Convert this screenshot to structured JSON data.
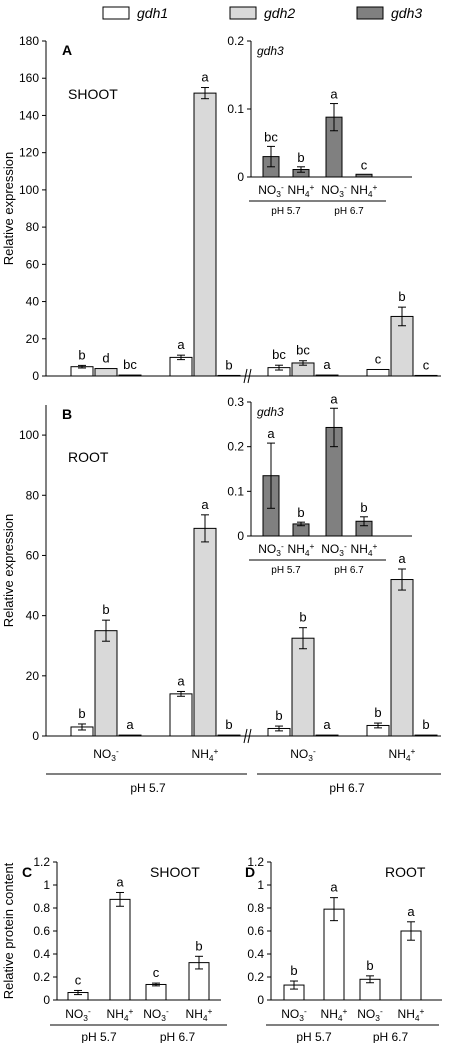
{
  "legend": [
    {
      "label": "gdh1",
      "color": "#ffffff"
    },
    {
      "label": "gdh2",
      "color": "#d9d9d9"
    },
    {
      "label": "gdh3",
      "color": "#808080"
    }
  ],
  "chart_data": [
    {
      "id": "A",
      "type": "bar",
      "panel_letter": "A",
      "title": "SHOOT",
      "xlabel": "",
      "ylabel": "Relative expression",
      "ylim": [
        0,
        180
      ],
      "yticks": [
        "0",
        "20",
        "40",
        "60",
        "80",
        "100",
        "120",
        "140",
        "160",
        "180"
      ],
      "groups": [
        {
          "treatment": "NO3-",
          "ph": "pH 5.7",
          "values": [
            5,
            4,
            0.5
          ],
          "errors": [
            0.7,
            0,
            0
          ],
          "letters": [
            "b",
            "d",
            "bc"
          ]
        },
        {
          "treatment": "NH4+",
          "ph": "pH 5.7",
          "values": [
            10,
            152,
            0.3
          ],
          "errors": [
            1.2,
            3,
            0
          ],
          "letters": [
            "a",
            "a",
            "b"
          ]
        },
        {
          "treatment": "NO3-",
          "ph": "pH 6.7",
          "values": [
            4.5,
            7,
            0.5
          ],
          "errors": [
            1.3,
            1.2,
            0
          ],
          "letters": [
            "bc",
            "bc",
            "a"
          ]
        },
        {
          "treatment": "NH4+",
          "ph": "pH 6.7",
          "values": [
            3.5,
            32,
            0.3
          ],
          "errors": [
            0,
            5,
            0
          ],
          "letters": [
            "c",
            "b",
            "c"
          ]
        }
      ],
      "inset": {
        "title": "gdh3",
        "ylim": [
          0,
          0.2
        ],
        "yticks": [
          "0",
          "0.1",
          "0.2"
        ],
        "bars": [
          {
            "treatment": "NO3-",
            "ph": "pH 5.7",
            "value": 0.03,
            "error": 0.015,
            "letter": "bc"
          },
          {
            "treatment": "NH4+",
            "ph": "pH 5.7",
            "value": 0.011,
            "error": 0.004,
            "letter": "b"
          },
          {
            "treatment": "NO3-",
            "ph": "pH 6.7",
            "value": 0.088,
            "error": 0.02,
            "letter": "a"
          },
          {
            "treatment": "NH4+",
            "ph": "pH 6.7",
            "value": 0.004,
            "error": 0,
            "letter": "c"
          }
        ]
      }
    },
    {
      "id": "B",
      "type": "bar",
      "panel_letter": "B",
      "title": "ROOT",
      "xlabel": "",
      "ylabel": "Relative expression",
      "ylim": [
        0,
        110
      ],
      "yticks": [
        "0",
        "20",
        "40",
        "60",
        "80",
        "100"
      ],
      "groups": [
        {
          "treatment": "NO3-",
          "ph": "pH 5.7",
          "values": [
            3,
            35,
            0.3
          ],
          "errors": [
            1,
            3.5,
            0
          ],
          "letters": [
            "b",
            "b",
            "a"
          ]
        },
        {
          "treatment": "NH4+",
          "ph": "pH 5.7",
          "values": [
            14,
            69,
            0.3
          ],
          "errors": [
            0.8,
            4.5,
            0
          ],
          "letters": [
            "a",
            "a",
            "b"
          ]
        },
        {
          "treatment": "NO3-",
          "ph": "pH 6.7",
          "values": [
            2.5,
            32.5,
            0.3
          ],
          "errors": [
            0.8,
            3.5,
            0
          ],
          "letters": [
            "b",
            "b",
            "a"
          ]
        },
        {
          "treatment": "NH4+",
          "ph": "pH 6.7",
          "values": [
            3.5,
            52,
            0.3
          ],
          "errors": [
            0.8,
            3.5,
            0
          ],
          "letters": [
            "b",
            "a",
            "b"
          ]
        }
      ],
      "inset": {
        "title": "gdh3",
        "ylim": [
          0,
          0.3
        ],
        "yticks": [
          "0",
          "0.1",
          "0.2",
          "0.3"
        ],
        "bars": [
          {
            "treatment": "NO3-",
            "ph": "pH 5.7",
            "value": 0.135,
            "error": 0.073,
            "letter": "a"
          },
          {
            "treatment": "NH4+",
            "ph": "pH 5.7",
            "value": 0.027,
            "error": 0.004,
            "letter": "b"
          },
          {
            "treatment": "NO3-",
            "ph": "pH 6.7",
            "value": 0.243,
            "error": 0.043,
            "letter": "a"
          },
          {
            "treatment": "NH4+",
            "ph": "pH 6.7",
            "value": 0.033,
            "error": 0.01,
            "letter": "b"
          }
        ]
      }
    },
    {
      "id": "C",
      "type": "bar",
      "panel_letter": "C",
      "title": "SHOOT",
      "xlabel": "",
      "ylabel": "Relative protein content",
      "ylim": [
        0,
        1.2
      ],
      "yticks": [
        "0",
        "0.2",
        "0.4",
        "0.6",
        "0.8",
        "1",
        "1.2"
      ],
      "bars": [
        {
          "treatment": "NO3-",
          "ph": "pH 5.7",
          "value": 0.065,
          "error": 0.018,
          "letter": "c"
        },
        {
          "treatment": "NH4+",
          "ph": "pH 5.7",
          "value": 0.875,
          "error": 0.06,
          "letter": "a"
        },
        {
          "treatment": "NO3-",
          "ph": "pH 6.7",
          "value": 0.135,
          "error": 0.012,
          "letter": "c"
        },
        {
          "treatment": "NH4+",
          "ph": "pH 6.7",
          "value": 0.325,
          "error": 0.055,
          "letter": "b"
        }
      ]
    },
    {
      "id": "D",
      "type": "bar",
      "panel_letter": "D",
      "title": "ROOT",
      "xlabel": "",
      "ylabel": "",
      "ylim": [
        0,
        1.2
      ],
      "yticks": [
        "0",
        "0.2",
        "0.4",
        "0.6",
        "0.8",
        "1",
        "1.2"
      ],
      "bars": [
        {
          "treatment": "NO3-",
          "ph": "pH 5.7",
          "value": 0.13,
          "error": 0.035,
          "letter": "b"
        },
        {
          "treatment": "NH4+",
          "ph": "pH 5.7",
          "value": 0.79,
          "error": 0.1,
          "letter": "a"
        },
        {
          "treatment": "NO3-",
          "ph": "pH 6.7",
          "value": 0.18,
          "error": 0.03,
          "letter": "b"
        },
        {
          "treatment": "NH4+",
          "ph": "pH 6.7",
          "value": 0.6,
          "error": 0.08,
          "letter": "a"
        }
      ]
    }
  ]
}
